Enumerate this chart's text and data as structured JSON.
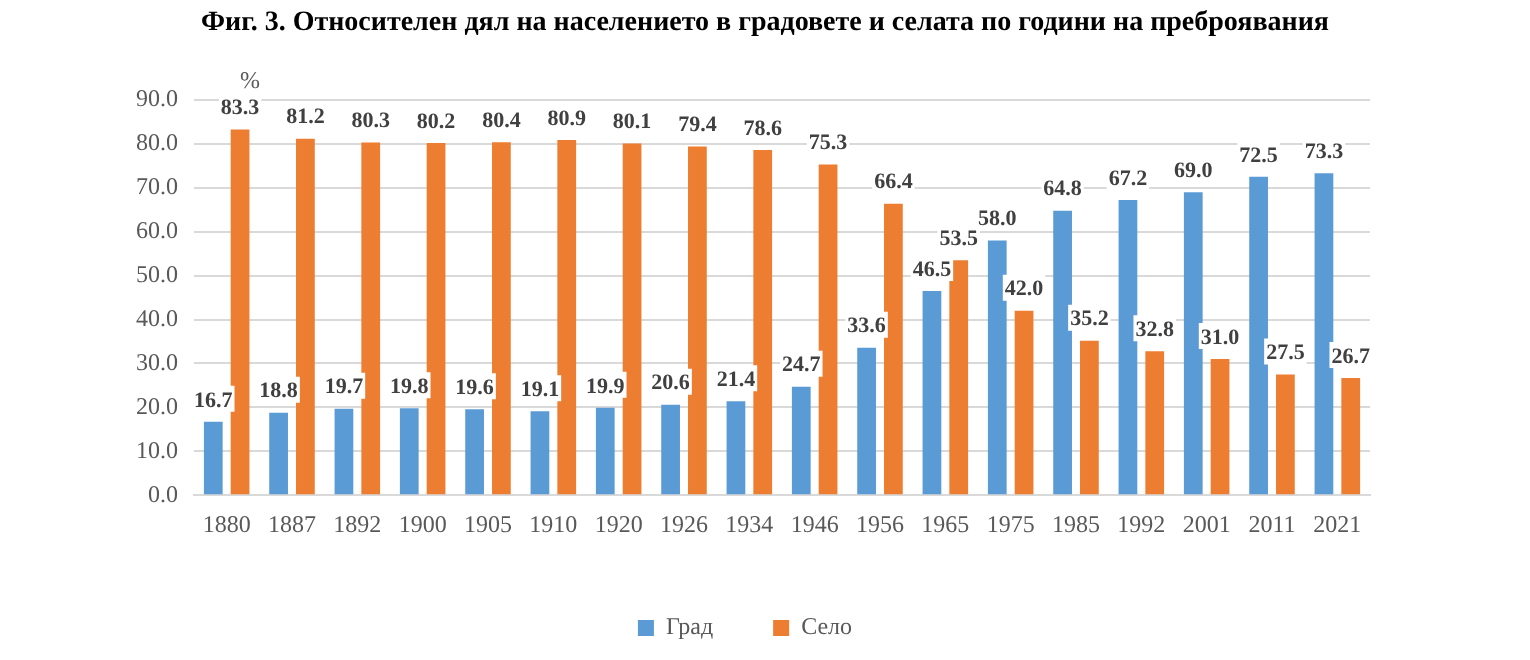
{
  "chart_data": {
    "type": "bar",
    "title": "Фиг. 3. Относителен дял на населението в градовете и селата по години на преброявания",
    "ylabel": "%",
    "categories": [
      "1880",
      "1887",
      "1892",
      "1900",
      "1905",
      "1910",
      "1920",
      "1926",
      "1934",
      "1946",
      "1956",
      "1965",
      "1975",
      "1985",
      "1992",
      "2001",
      "2011",
      "2021"
    ],
    "series": [
      {
        "name": "Град",
        "color": "#5b9bd5",
        "values": [
          16.7,
          18.8,
          19.7,
          19.8,
          19.6,
          19.1,
          19.9,
          20.6,
          21.4,
          24.7,
          33.6,
          46.5,
          58.0,
          64.8,
          67.2,
          69.0,
          72.5,
          73.3
        ],
        "value_labels": [
          "16.7",
          "18.8",
          "19.7",
          "19.8",
          "19.6",
          "19.1",
          "19.9",
          "20.6",
          "21.4",
          "24.7",
          "33.6",
          "46.5",
          "58.0",
          "64.8",
          "67.2",
          "69.0",
          "72.5",
          "73.3"
        ]
      },
      {
        "name": "Село",
        "color": "#ed7d31",
        "values": [
          83.3,
          81.2,
          80.3,
          80.2,
          80.4,
          80.9,
          80.1,
          79.4,
          78.6,
          75.3,
          66.4,
          53.5,
          42.0,
          35.2,
          32.8,
          31.0,
          27.5,
          26.7
        ],
        "value_labels": [
          "83.3",
          "81.2",
          "80.3",
          "80.2",
          "80.4",
          "80.9",
          "80.1",
          "79.4",
          "78.6",
          "75.3",
          "66.4",
          "53.5",
          "42.0",
          "35.2",
          "32.8",
          "31.0",
          "27.5",
          "26.7"
        ]
      }
    ],
    "ylim": [
      0,
      90
    ],
    "yticks": [
      {
        "value": 0,
        "label": "0.0"
      },
      {
        "value": 10,
        "label": "10.0"
      },
      {
        "value": 20,
        "label": "20.0"
      },
      {
        "value": 30,
        "label": "30.0"
      },
      {
        "value": 40,
        "label": "40.0"
      },
      {
        "value": 50,
        "label": "50.0"
      },
      {
        "value": 60,
        "label": "60.0"
      },
      {
        "value": 70,
        "label": "70.0"
      },
      {
        "value": 80,
        "label": "80.0"
      },
      {
        "value": 90,
        "label": "90.0"
      }
    ],
    "grid": "y",
    "legend": "bottom"
  }
}
